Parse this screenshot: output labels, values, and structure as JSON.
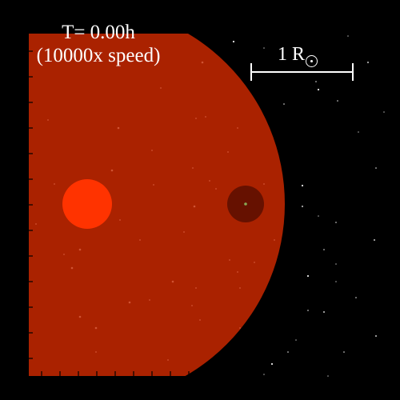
{
  "labels": {
    "time": "T= 0.00h",
    "speed": "(10000x speed)",
    "scale_text": "1 R",
    "scale_symbol": "sun-symbol"
  },
  "colors": {
    "background": "#000000",
    "giant_star": "#aa2200",
    "companion": "#ff3300",
    "inner_object": "#661100",
    "core_dot": "#88aa55",
    "text": "#ffffff",
    "stars": "#ffffff",
    "speckle": "#d96040"
  }
}
